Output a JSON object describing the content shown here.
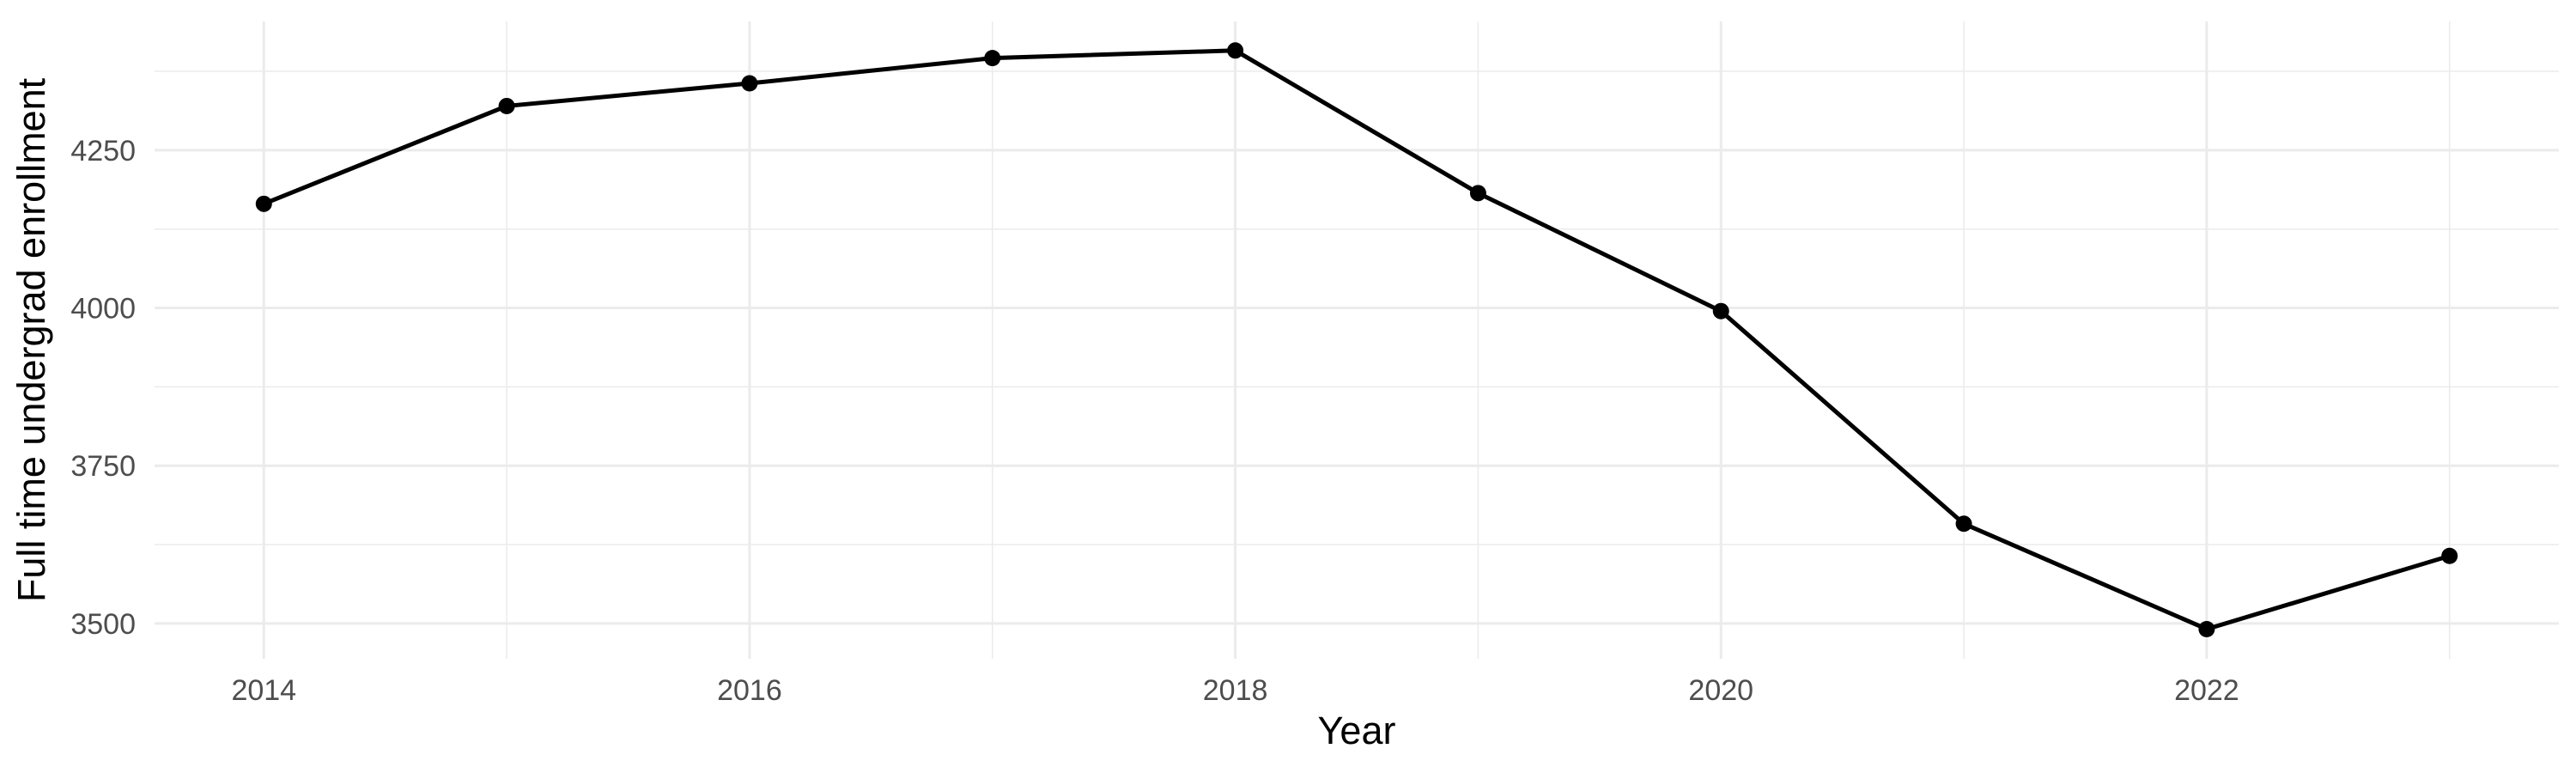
{
  "chart_data": {
    "type": "line",
    "title": "",
    "xlabel": "Year",
    "ylabel": "Full time undergrad enrollment",
    "x": [
      2014,
      2015,
      2016,
      2017,
      2018,
      2019,
      2020,
      2021,
      2022,
      2023
    ],
    "series": [
      {
        "name": "Full time undergrad enrollment",
        "values": [
          4165,
          4320,
          4356,
          4396,
          4408,
          4182,
          3995,
          3658,
          3491,
          3607
        ]
      }
    ],
    "xlim": [
      2013.55,
      2023.45
    ],
    "ylim": [
      3444,
      4454
    ],
    "x_ticks_major": [
      2014,
      2016,
      2018,
      2020,
      2022
    ],
    "x_tick_labels": [
      "2014",
      "2016",
      "2018",
      "2020",
      "2022"
    ],
    "x_ticks_minor": [
      2015,
      2017,
      2019,
      2021,
      2023
    ],
    "y_ticks_major": [
      3500,
      3750,
      4000,
      4250
    ],
    "y_tick_labels": [
      "3500",
      "3750",
      "4000",
      "4250"
    ],
    "y_ticks_minor": [
      3625,
      3875,
      4125,
      4375
    ],
    "grid": true,
    "legend": "none",
    "marker": "point",
    "colors": {
      "background": "#FFFFFF",
      "line": "#000000",
      "point": "#000000",
      "grid_major": "#EBEBEB",
      "grid_minor": "#EBEBEB",
      "tick_text": "#4D4D4D",
      "axis_title_text": "#000000"
    }
  }
}
